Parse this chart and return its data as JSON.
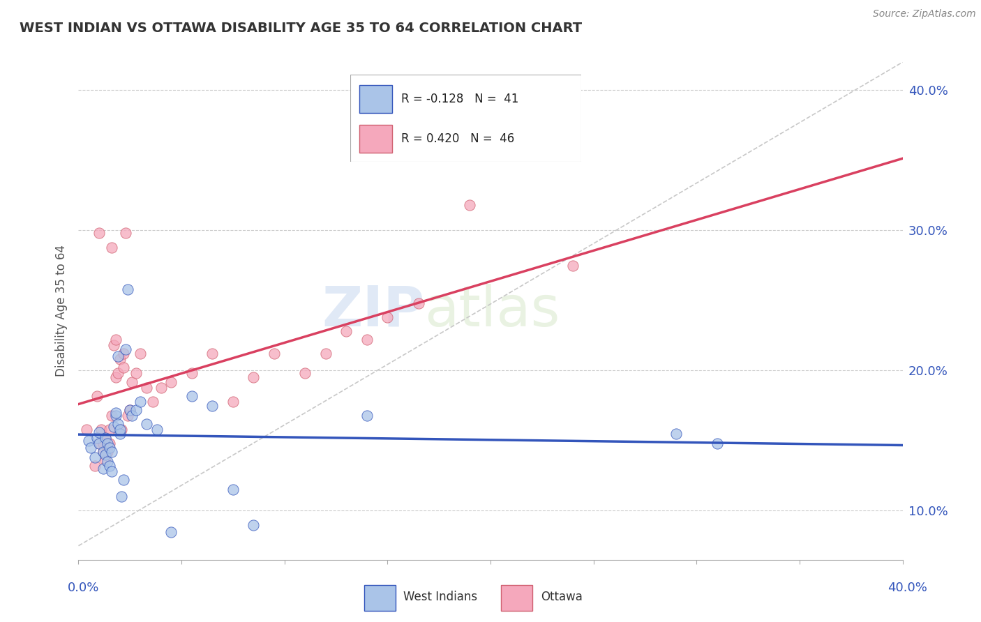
{
  "title": "WEST INDIAN VS OTTAWA DISABILITY AGE 35 TO 64 CORRELATION CHART",
  "source": "Source: ZipAtlas.com",
  "ylabel": "Disability Age 35 to 64",
  "xlim": [
    0.0,
    0.4
  ],
  "ylim": [
    0.065,
    0.42
  ],
  "yaxis_tick_vals": [
    0.1,
    0.2,
    0.3,
    0.4
  ],
  "legend_R1": "R = -0.128",
  "legend_N1": "N =  41",
  "legend_R2": "R = 0.420",
  "legend_N2": "N =  46",
  "color_blue": "#aac4e8",
  "color_pink": "#f5a8bc",
  "line_blue": "#3355bb",
  "line_pink": "#d94060",
  "line_gray": "#cccccc",
  "watermark_zip": "ZIP",
  "watermark_atlas": "atlas",
  "west_indians_x": [
    0.005,
    0.006,
    0.008,
    0.009,
    0.01,
    0.01,
    0.012,
    0.012,
    0.013,
    0.013,
    0.014,
    0.014,
    0.015,
    0.015,
    0.016,
    0.016,
    0.017,
    0.018,
    0.018,
    0.019,
    0.019,
    0.02,
    0.02,
    0.021,
    0.022,
    0.023,
    0.024,
    0.025,
    0.026,
    0.028,
    0.03,
    0.033,
    0.038,
    0.045,
    0.055,
    0.065,
    0.075,
    0.085,
    0.14,
    0.29,
    0.31
  ],
  "west_indians_y": [
    0.15,
    0.145,
    0.138,
    0.152,
    0.148,
    0.156,
    0.13,
    0.142,
    0.14,
    0.152,
    0.135,
    0.148,
    0.132,
    0.145,
    0.128,
    0.142,
    0.16,
    0.168,
    0.17,
    0.162,
    0.21,
    0.155,
    0.158,
    0.11,
    0.122,
    0.215,
    0.258,
    0.172,
    0.168,
    0.172,
    0.178,
    0.162,
    0.158,
    0.085,
    0.182,
    0.175,
    0.115,
    0.09,
    0.168,
    0.155,
    0.148
  ],
  "ottawa_x": [
    0.004,
    0.008,
    0.009,
    0.01,
    0.01,
    0.011,
    0.012,
    0.012,
    0.013,
    0.013,
    0.014,
    0.015,
    0.015,
    0.016,
    0.016,
    0.017,
    0.018,
    0.018,
    0.019,
    0.02,
    0.021,
    0.022,
    0.022,
    0.023,
    0.024,
    0.025,
    0.026,
    0.028,
    0.03,
    0.033,
    0.036,
    0.04,
    0.045,
    0.055,
    0.065,
    0.075,
    0.085,
    0.095,
    0.11,
    0.12,
    0.13,
    0.14,
    0.15,
    0.165,
    0.19,
    0.24
  ],
  "ottawa_y": [
    0.158,
    0.132,
    0.182,
    0.298,
    0.148,
    0.158,
    0.142,
    0.148,
    0.152,
    0.136,
    0.142,
    0.148,
    0.158,
    0.168,
    0.288,
    0.218,
    0.222,
    0.195,
    0.198,
    0.208,
    0.158,
    0.202,
    0.212,
    0.298,
    0.168,
    0.172,
    0.192,
    0.198,
    0.212,
    0.188,
    0.178,
    0.188,
    0.192,
    0.198,
    0.212,
    0.178,
    0.195,
    0.212,
    0.198,
    0.212,
    0.228,
    0.222,
    0.238,
    0.248,
    0.318,
    0.275
  ]
}
